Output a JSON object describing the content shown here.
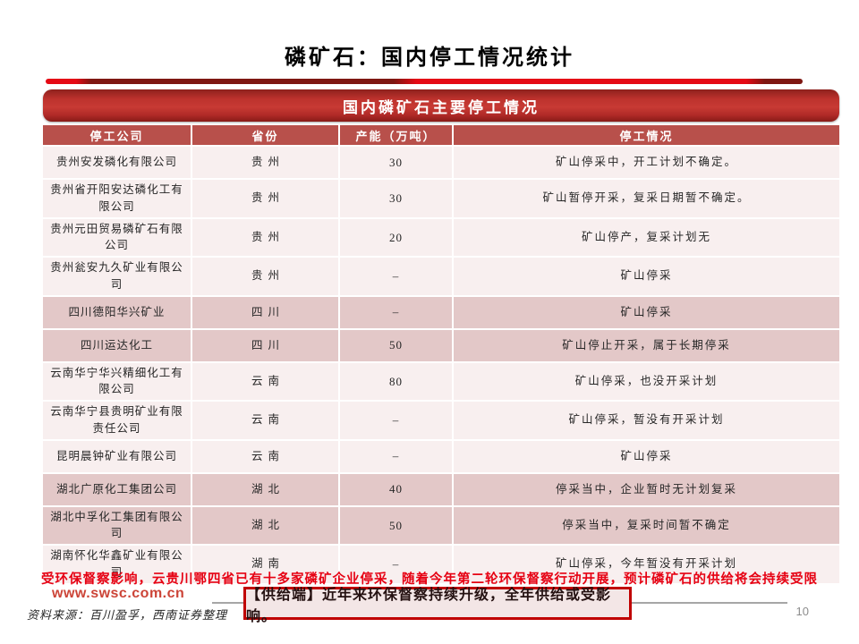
{
  "title": "磷矿石：国内停工情况统计",
  "banner": {
    "title": "国内磷矿石主要停工情况"
  },
  "table": {
    "headers": [
      "停工公司",
      "省份",
      "产能（万吨）",
      "停工情况"
    ],
    "rows": [
      {
        "company": "贵州安发磷化有限公司",
        "province": "贵州",
        "capacity": "30",
        "status": "矿山停采中，开工计划不确定。",
        "shade": "light"
      },
      {
        "company": "贵州省开阳安达磷化工有限公司",
        "province": "贵州",
        "capacity": "30",
        "status": "矿山暂停开采，复采日期暂不确定。",
        "shade": "light"
      },
      {
        "company": "贵州元田贸易磷矿石有限公司",
        "province": "贵州",
        "capacity": "20",
        "status": "矿山停产，复采计划无",
        "shade": "light"
      },
      {
        "company": "贵州瓮安九久矿业有限公司",
        "province": "贵州",
        "capacity": "–",
        "status": "矿山停采",
        "shade": "light"
      },
      {
        "company": "四川德阳华兴矿业",
        "province": "四川",
        "capacity": "–",
        "status": "矿山停采",
        "shade": "dark"
      },
      {
        "company": "四川运达化工",
        "province": "四川",
        "capacity": "50",
        "status": "矿山停止开采，属于长期停采",
        "shade": "dark"
      },
      {
        "company": "云南华宁华兴精细化工有限公司",
        "province": "云南",
        "capacity": "80",
        "status": "矿山停采，也没开采计划",
        "shade": "light"
      },
      {
        "company": "云南华宁县贵明矿业有限责任公司",
        "province": "云南",
        "capacity": "–",
        "status": "矿山停采，暂没有开采计划",
        "shade": "light"
      },
      {
        "company": "昆明晨钟矿业有限公司",
        "province": "云南",
        "capacity": "–",
        "status": "矿山停采",
        "shade": "light"
      },
      {
        "company": "湖北广原化工集团公司",
        "province": "湖北",
        "capacity": "40",
        "status": "停采当中，企业暂时无计划复采",
        "shade": "dark"
      },
      {
        "company": "湖北中孚化工集团有限公司",
        "province": "湖北",
        "capacity": "50",
        "status": "停采当中，复采时间暂不确定",
        "shade": "dark"
      },
      {
        "company": "湖南怀化华鑫矿业有限公司",
        "province": "湖南",
        "capacity": "–",
        "status": "矿山停采，今年暂没有开采计划",
        "shade": "light"
      }
    ]
  },
  "highlight_text": "受环保督察影响，云贵川鄂四省已有十多家磷矿企业停采，随着今年第二轮环保督察行动开展，预计磷矿石的供给将会持续受限",
  "footer": {
    "website": "www.swsc.com.cn",
    "source": "资料来源：百川盈孚，西南证券整理",
    "callout": "【供给端】近年来环保督察持续升级，全年供给或受影响。",
    "page_number": "10"
  },
  "colors": {
    "accent_red": "#e60012",
    "banner_red": "#c0332e",
    "header_red": "#b8504b",
    "row_light": "#f8efef",
    "row_dark": "#e3c8c8",
    "callout_border": "#c00000",
    "deco_dark_red": "#7e1712"
  }
}
